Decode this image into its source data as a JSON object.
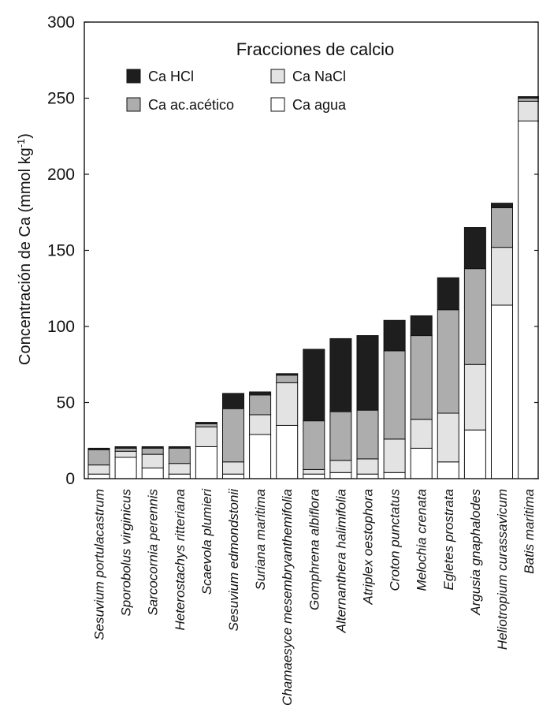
{
  "chart_data": {
    "type": "bar",
    "stacked": true,
    "title": "",
    "xlabel": "",
    "ylabel": "Concentración de Ca (mmol kg",
    "ylabel_sup": "-1",
    "ylabel_close": ")",
    "ylim": [
      0,
      300
    ],
    "yticks": [
      0,
      50,
      100,
      150,
      200,
      250,
      300
    ],
    "grid": false,
    "legend": {
      "title": "Fracciones de calcio",
      "placement": "top-center"
    },
    "categories": [
      "Sesuvium portulacastrum",
      "Sporobolus virginicus",
      "Sarcocornia perennis",
      "Heterostachys ritteriana",
      "Scaevola plumieri",
      "Sesuvium edmondstonii",
      "Suriana maritima",
      "Chamaesyce mesembryanthemifolia",
      "Gomphrena albiflora",
      "Alternanthera halimifolia",
      "Atriplex oestophora",
      "Croton punctatus",
      "Melochia crenata",
      "Egletes prostrata",
      "Argusia gnaphalodes",
      "Heliotropium curassavicum",
      "Batis maritima"
    ],
    "series": [
      {
        "name": "Ca agua",
        "color": "#ffffff",
        "values": [
          3,
          14,
          7,
          3,
          21,
          3,
          29,
          35,
          3,
          4,
          3,
          4,
          20,
          11,
          32,
          114,
          235
        ]
      },
      {
        "name": "Ca NaCl",
        "color": "#e3e3e3",
        "values": [
          6,
          4,
          9,
          7,
          13,
          8,
          13,
          28,
          3,
          8,
          10,
          22,
          19,
          32,
          43,
          38,
          13
        ]
      },
      {
        "name": "Ca ac.acético",
        "color": "#adadad",
        "values": [
          10,
          2,
          4,
          10,
          2,
          35,
          13,
          5,
          32,
          32,
          32,
          58,
          55,
          68,
          63,
          26,
          2
        ]
      },
      {
        "name": "Ca HCl",
        "color": "#1e1e1e",
        "values": [
          1,
          1,
          1,
          1,
          1,
          10,
          2,
          1,
          47,
          48,
          49,
          20,
          13,
          21,
          27,
          3,
          1
        ]
      }
    ]
  }
}
